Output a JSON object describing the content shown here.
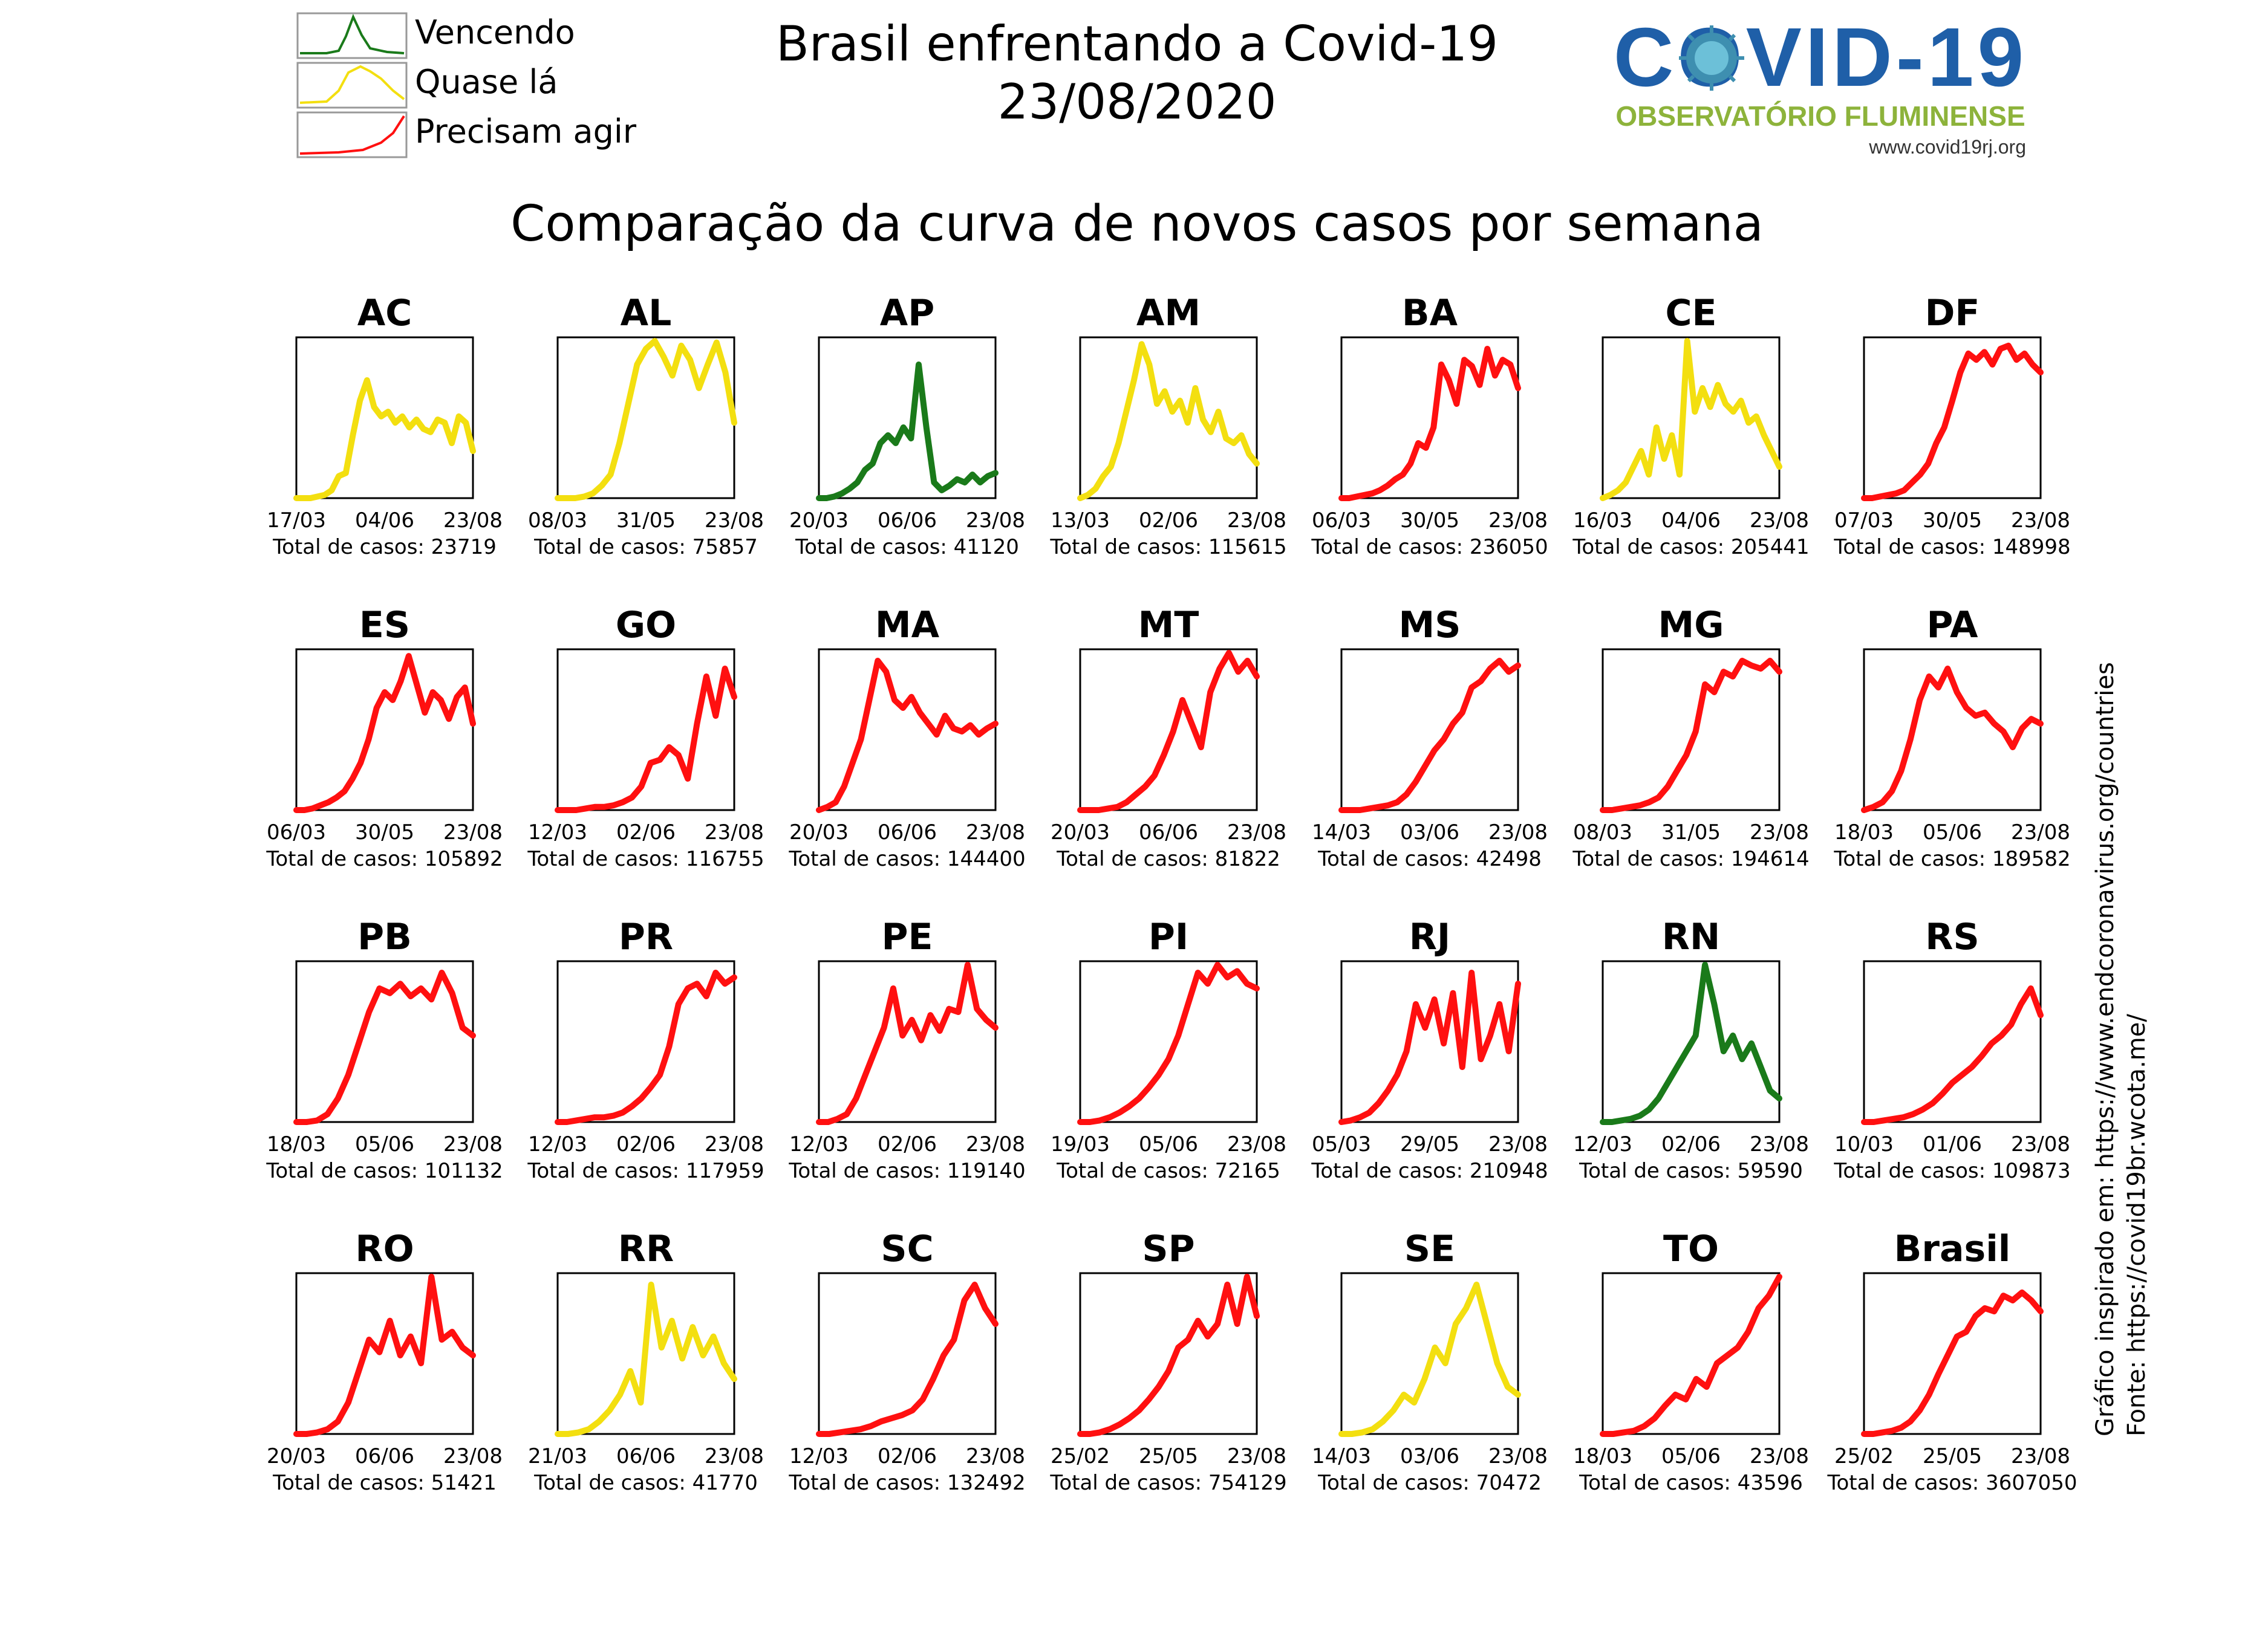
{
  "header": {
    "title": "Brasil enfrentando a Covid-19",
    "date": "23/08/2020",
    "subtitle": "Comparação da curva de novos casos por semana",
    "logo": {
      "text": "COVID-19",
      "tagline": "OBSERVATÓRIO FLUMINENSE",
      "url": "www.covid19rj.org",
      "colors": {
        "text": "#1f5fa8",
        "virus": "#3e8fb0",
        "tagline": "#8db33b"
      }
    }
  },
  "legend": [
    {
      "label": "Vencendo",
      "color": "#1a7a1a"
    },
    {
      "label": "Quase lá",
      "color": "#f3df10"
    },
    {
      "label": "Precisam agir",
      "color": "#ff1010"
    }
  ],
  "side_notes": {
    "inspired": "Gráfico inspirado em: https://www.endcoronavirus.org/countries",
    "source": "Fonte: https://covid19br.wcota.me/"
  },
  "total_label": "Total de casos:",
  "colors": {
    "green": "#1a7a1a",
    "yellow": "#f3df10",
    "red": "#ff1010"
  },
  "chart_data": [
    {
      "type": "line",
      "title": "AC",
      "status": "yellow",
      "xticks": [
        "17/03",
        "04/06",
        "23/08"
      ],
      "total": "23719",
      "y": [
        0,
        0,
        0,
        0.01,
        0.02,
        0.05,
        0.14,
        0.16,
        0.4,
        0.62,
        0.75,
        0.58,
        0.52,
        0.55,
        0.48,
        0.52,
        0.45,
        0.5,
        0.44,
        0.42,
        0.5,
        0.48,
        0.35,
        0.52,
        0.48,
        0.3
      ]
    },
    {
      "type": "line",
      "title": "AL",
      "status": "yellow",
      "xticks": [
        "08/03",
        "31/05",
        "23/08"
      ],
      "total": "75857",
      "y": [
        0,
        0,
        0,
        0.01,
        0.03,
        0.08,
        0.15,
        0.35,
        0.6,
        0.85,
        0.95,
        1.0,
        0.9,
        0.78,
        0.97,
        0.88,
        0.7,
        0.85,
        0.99,
        0.8,
        0.48
      ]
    },
    {
      "type": "line",
      "title": "AP",
      "status": "green",
      "xticks": [
        "20/03",
        "06/06",
        "23/08"
      ],
      "total": "41120",
      "y": [
        0,
        0,
        0.01,
        0.03,
        0.06,
        0.1,
        0.18,
        0.22,
        0.35,
        0.4,
        0.35,
        0.45,
        0.38,
        0.85,
        0.45,
        0.1,
        0.05,
        0.08,
        0.12,
        0.1,
        0.15,
        0.1,
        0.14,
        0.16
      ]
    },
    {
      "type": "line",
      "title": "AM",
      "status": "yellow",
      "xticks": [
        "13/03",
        "02/06",
        "23/08"
      ],
      "total": "115615",
      "y": [
        0,
        0.02,
        0.06,
        0.14,
        0.2,
        0.35,
        0.55,
        0.75,
        0.98,
        0.85,
        0.6,
        0.68,
        0.55,
        0.62,
        0.48,
        0.7,
        0.5,
        0.42,
        0.55,
        0.38,
        0.35,
        0.4,
        0.28,
        0.22
      ]
    },
    {
      "type": "line",
      "title": "BA",
      "status": "red",
      "xticks": [
        "06/03",
        "30/05",
        "23/08"
      ],
      "total": "236050",
      "y": [
        0,
        0,
        0.01,
        0.02,
        0.03,
        0.05,
        0.08,
        0.12,
        0.15,
        0.22,
        0.35,
        0.32,
        0.45,
        0.85,
        0.75,
        0.6,
        0.88,
        0.84,
        0.72,
        0.95,
        0.78,
        0.88,
        0.85,
        0.7
      ]
    },
    {
      "type": "line",
      "title": "CE",
      "status": "yellow",
      "xticks": [
        "16/03",
        "04/06",
        "23/08"
      ],
      "total": "205441",
      "y": [
        0,
        0.02,
        0.05,
        0.1,
        0.2,
        0.3,
        0.15,
        0.45,
        0.25,
        0.4,
        0.15,
        1.0,
        0.55,
        0.7,
        0.58,
        0.72,
        0.6,
        0.55,
        0.62,
        0.48,
        0.52,
        0.4,
        0.3,
        0.2
      ]
    },
    {
      "type": "line",
      "title": "DF",
      "status": "red",
      "xticks": [
        "07/03",
        "30/05",
        "23/08"
      ],
      "total": "148998",
      "y": [
        0,
        0,
        0.01,
        0.02,
        0.03,
        0.05,
        0.1,
        0.15,
        0.22,
        0.35,
        0.45,
        0.62,
        0.8,
        0.92,
        0.88,
        0.93,
        0.85,
        0.95,
        0.97,
        0.88,
        0.92,
        0.85,
        0.8
      ]
    },
    {
      "type": "line",
      "title": "ES",
      "status": "red",
      "xticks": [
        "06/03",
        "30/05",
        "23/08"
      ],
      "total": "105892",
      "y": [
        0,
        0,
        0.01,
        0.03,
        0.05,
        0.08,
        0.12,
        0.2,
        0.3,
        0.45,
        0.65,
        0.75,
        0.7,
        0.82,
        0.98,
        0.8,
        0.62,
        0.75,
        0.7,
        0.58,
        0.72,
        0.78,
        0.55
      ]
    },
    {
      "type": "line",
      "title": "GO",
      "status": "red",
      "xticks": [
        "12/03",
        "02/06",
        "23/08"
      ],
      "total": "116755",
      "y": [
        0,
        0,
        0,
        0.01,
        0.02,
        0.02,
        0.03,
        0.05,
        0.08,
        0.15,
        0.3,
        0.32,
        0.4,
        0.35,
        0.2,
        0.55,
        0.85,
        0.6,
        0.9,
        0.72
      ]
    },
    {
      "type": "line",
      "title": "MA",
      "status": "red",
      "xticks": [
        "20/03",
        "06/06",
        "23/08"
      ],
      "total": "144400",
      "y": [
        0,
        0.02,
        0.05,
        0.15,
        0.3,
        0.45,
        0.7,
        0.95,
        0.88,
        0.7,
        0.65,
        0.72,
        0.62,
        0.55,
        0.48,
        0.6,
        0.52,
        0.5,
        0.54,
        0.48,
        0.52,
        0.55
      ]
    },
    {
      "type": "line",
      "title": "MT",
      "status": "red",
      "xticks": [
        "20/03",
        "06/06",
        "23/08"
      ],
      "total": "81822",
      "y": [
        0,
        0,
        0,
        0.01,
        0.02,
        0.05,
        0.1,
        0.15,
        0.22,
        0.35,
        0.5,
        0.7,
        0.55,
        0.4,
        0.75,
        0.9,
        1.0,
        0.88,
        0.95,
        0.85
      ]
    },
    {
      "type": "line",
      "title": "MS",
      "status": "red",
      "xticks": [
        "14/03",
        "03/06",
        "23/08"
      ],
      "total": "42498",
      "y": [
        0,
        0,
        0,
        0.01,
        0.02,
        0.03,
        0.05,
        0.1,
        0.18,
        0.28,
        0.38,
        0.45,
        0.55,
        0.62,
        0.78,
        0.82,
        0.9,
        0.95,
        0.88,
        0.92
      ]
    },
    {
      "type": "line",
      "title": "MG",
      "status": "red",
      "xticks": [
        "08/03",
        "31/05",
        "23/08"
      ],
      "total": "194614",
      "y": [
        0,
        0,
        0.01,
        0.02,
        0.03,
        0.05,
        0.08,
        0.15,
        0.25,
        0.35,
        0.5,
        0.8,
        0.75,
        0.88,
        0.85,
        0.95,
        0.92,
        0.9,
        0.95,
        0.88
      ]
    },
    {
      "type": "line",
      "title": "PA",
      "status": "red",
      "xticks": [
        "18/03",
        "05/06",
        "23/08"
      ],
      "total": "189582",
      "y": [
        0,
        0.02,
        0.05,
        0.12,
        0.25,
        0.45,
        0.7,
        0.85,
        0.78,
        0.9,
        0.75,
        0.65,
        0.6,
        0.62,
        0.55,
        0.5,
        0.4,
        0.52,
        0.58,
        0.55
      ]
    },
    {
      "type": "line",
      "title": "PB",
      "status": "red",
      "xticks": [
        "18/03",
        "05/06",
        "23/08"
      ],
      "total": "101132",
      "y": [
        0,
        0,
        0.01,
        0.05,
        0.15,
        0.3,
        0.5,
        0.7,
        0.85,
        0.82,
        0.88,
        0.8,
        0.85,
        0.78,
        0.95,
        0.82,
        0.6,
        0.55
      ]
    },
    {
      "type": "line",
      "title": "PR",
      "status": "red",
      "xticks": [
        "12/03",
        "02/06",
        "23/08"
      ],
      "total": "117959",
      "y": [
        0,
        0,
        0.01,
        0.02,
        0.03,
        0.03,
        0.04,
        0.06,
        0.1,
        0.15,
        0.22,
        0.3,
        0.48,
        0.75,
        0.85,
        0.88,
        0.8,
        0.95,
        0.88,
        0.92
      ]
    },
    {
      "type": "line",
      "title": "PE",
      "status": "red",
      "xticks": [
        "12/03",
        "02/06",
        "23/08"
      ],
      "total": "119140",
      "y": [
        0,
        0,
        0.02,
        0.05,
        0.15,
        0.3,
        0.45,
        0.6,
        0.85,
        0.55,
        0.65,
        0.52,
        0.68,
        0.58,
        0.72,
        0.7,
        1.0,
        0.72,
        0.65,
        0.6
      ]
    },
    {
      "type": "line",
      "title": "PI",
      "status": "red",
      "xticks": [
        "19/03",
        "05/06",
        "23/08"
      ],
      "total": "72165",
      "y": [
        0,
        0,
        0.01,
        0.03,
        0.06,
        0.1,
        0.15,
        0.22,
        0.3,
        0.4,
        0.55,
        0.75,
        0.95,
        0.88,
        1.0,
        0.92,
        0.96,
        0.88,
        0.85
      ]
    },
    {
      "type": "line",
      "title": "RJ",
      "status": "red",
      "xticks": [
        "05/03",
        "29/05",
        "23/08"
      ],
      "total": "210948",
      "y": [
        0,
        0.01,
        0.03,
        0.06,
        0.12,
        0.2,
        0.3,
        0.45,
        0.75,
        0.6,
        0.78,
        0.5,
        0.82,
        0.35,
        0.95,
        0.4,
        0.55,
        0.75,
        0.45,
        0.88
      ]
    },
    {
      "type": "line",
      "title": "RN",
      "status": "green",
      "xticks": [
        "12/03",
        "02/06",
        "23/08"
      ],
      "total": "59590",
      "y": [
        0,
        0,
        0.01,
        0.02,
        0.04,
        0.08,
        0.15,
        0.25,
        0.35,
        0.45,
        0.55,
        1.0,
        0.75,
        0.45,
        0.55,
        0.4,
        0.5,
        0.35,
        0.2,
        0.15
      ]
    },
    {
      "type": "line",
      "title": "RS",
      "status": "red",
      "xticks": [
        "10/03",
        "01/06",
        "23/08"
      ],
      "total": "109873",
      "y": [
        0,
        0,
        0.01,
        0.02,
        0.03,
        0.05,
        0.08,
        0.12,
        0.18,
        0.25,
        0.3,
        0.35,
        0.42,
        0.5,
        0.55,
        0.62,
        0.75,
        0.85,
        0.68
      ]
    },
    {
      "type": "line",
      "title": "RO",
      "status": "red",
      "xticks": [
        "20/03",
        "06/06",
        "23/08"
      ],
      "total": "51421",
      "y": [
        0,
        0,
        0.01,
        0.03,
        0.08,
        0.2,
        0.4,
        0.6,
        0.52,
        0.72,
        0.5,
        0.62,
        0.45,
        1.0,
        0.6,
        0.65,
        0.55,
        0.5
      ]
    },
    {
      "type": "line",
      "title": "RR",
      "status": "yellow",
      "xticks": [
        "21/03",
        "06/06",
        "23/08"
      ],
      "total": "41770",
      "y": [
        0,
        0,
        0.01,
        0.03,
        0.08,
        0.15,
        0.25,
        0.4,
        0.2,
        0.95,
        0.55,
        0.72,
        0.48,
        0.68,
        0.5,
        0.62,
        0.45,
        0.35
      ]
    },
    {
      "type": "line",
      "title": "SC",
      "status": "red",
      "xticks": [
        "12/03",
        "02/06",
        "23/08"
      ],
      "total": "132492",
      "y": [
        0,
        0,
        0.01,
        0.02,
        0.03,
        0.05,
        0.08,
        0.1,
        0.12,
        0.15,
        0.22,
        0.35,
        0.5,
        0.6,
        0.85,
        0.95,
        0.8,
        0.7
      ]
    },
    {
      "type": "line",
      "title": "SP",
      "status": "red",
      "xticks": [
        "25/02",
        "25/05",
        "23/08"
      ],
      "total": "754129",
      "y": [
        0,
        0,
        0.01,
        0.03,
        0.06,
        0.1,
        0.15,
        0.22,
        0.3,
        0.4,
        0.55,
        0.6,
        0.72,
        0.62,
        0.7,
        0.95,
        0.7,
        1.0,
        0.75
      ]
    },
    {
      "type": "line",
      "title": "SE",
      "status": "yellow",
      "xticks": [
        "14/03",
        "03/06",
        "23/08"
      ],
      "total": "70472",
      "y": [
        0,
        0,
        0.01,
        0.03,
        0.08,
        0.15,
        0.25,
        0.2,
        0.35,
        0.55,
        0.45,
        0.7,
        0.8,
        0.95,
        0.7,
        0.45,
        0.3,
        0.25
      ]
    },
    {
      "type": "line",
      "title": "TO",
      "status": "red",
      "xticks": [
        "18/03",
        "05/06",
        "23/08"
      ],
      "total": "43596",
      "y": [
        0,
        0,
        0.01,
        0.02,
        0.05,
        0.1,
        0.18,
        0.25,
        0.22,
        0.35,
        0.3,
        0.45,
        0.5,
        0.55,
        0.65,
        0.8,
        0.88,
        1.0
      ]
    },
    {
      "type": "line",
      "title": "Brasil",
      "status": "red",
      "xticks": [
        "25/02",
        "25/05",
        "23/08"
      ],
      "total": "3607050",
      "y": [
        0,
        0,
        0.01,
        0.02,
        0.04,
        0.08,
        0.15,
        0.25,
        0.38,
        0.5,
        0.62,
        0.65,
        0.75,
        0.8,
        0.78,
        0.88,
        0.85,
        0.9,
        0.85,
        0.78
      ]
    }
  ]
}
